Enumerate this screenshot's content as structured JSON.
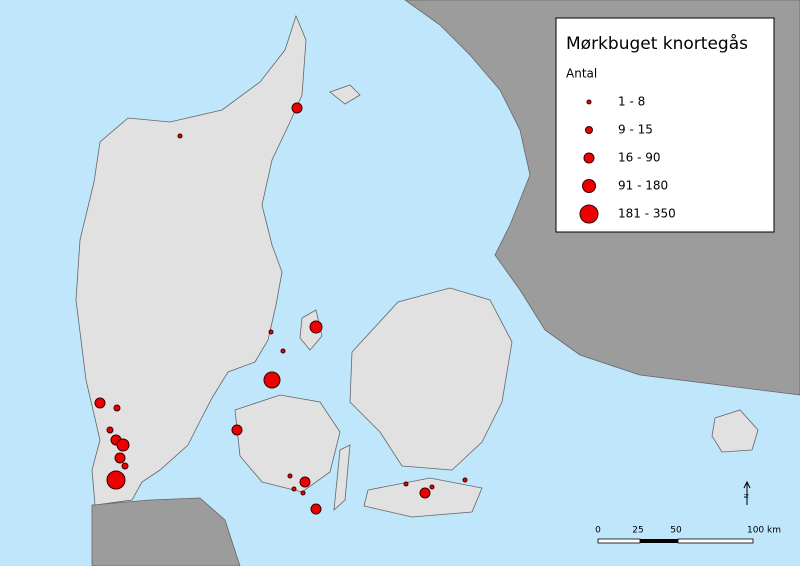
{
  "legend": {
    "title": "Mørkbuget knortegås",
    "subtitle": "Antal",
    "items": [
      "1 - 8",
      "9 - 15",
      "16 - 90",
      "91 - 180",
      "181 - 350"
    ]
  },
  "scale_bar": {
    "labels": [
      "0",
      "25",
      "50",
      "100 km"
    ]
  },
  "north_arrow": "N"
}
